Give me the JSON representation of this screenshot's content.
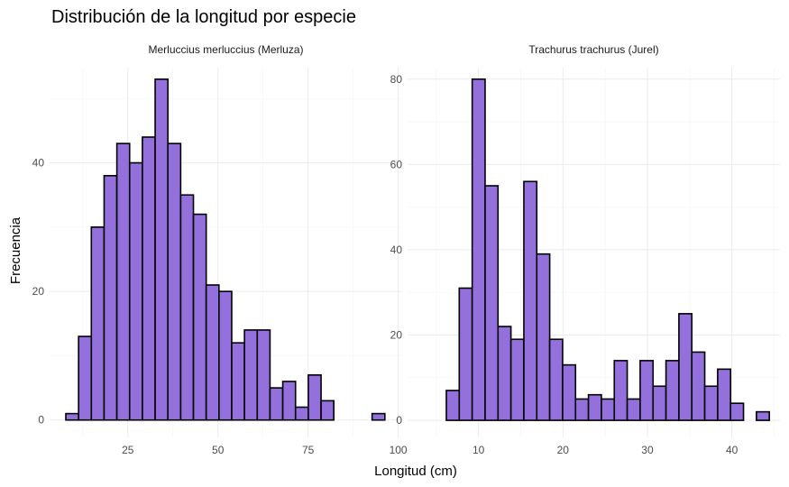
{
  "chart_data": {
    "type": "bar",
    "title": "Distribución de la longitud por especie",
    "xlabel": "Longitud (cm)",
    "ylabel": "Frecuencia",
    "grid": true,
    "colors": {
      "fill": "#9370DB",
      "outline": "#000000"
    },
    "facets": [
      {
        "name": "Merluccius merluccius (Merluza)",
        "bin_start": 7.8,
        "bin_width": 3.54,
        "values": [
          1,
          13,
          30,
          38,
          43,
          40,
          44,
          53,
          43,
          35,
          32,
          21,
          20,
          12,
          14,
          14,
          5,
          6,
          2,
          7,
          3,
          0,
          0,
          0,
          1
        ],
        "xlim": [
          3.3,
          101.1
        ],
        "ylim": [
          -2.7,
          54.8
        ],
        "xticks": [
          25,
          50,
          75,
          100
        ],
        "xtick_labels": [
          "25",
          "50",
          "75",
          "100"
        ],
        "yticks": [
          0,
          20,
          40
        ],
        "ytick_labels": [
          "0",
          "20",
          "40"
        ]
      },
      {
        "name": "Trachurus trachurus (Jurel)",
        "bin_start": 6.19,
        "bin_width": 1.53,
        "values": [
          7,
          31,
          80,
          55,
          22,
          19,
          56,
          39,
          19,
          13,
          5,
          6,
          5,
          14,
          5,
          14,
          8,
          14,
          25,
          16,
          8,
          12,
          4,
          0,
          2
        ],
        "xlim": [
          1.6,
          45.7
        ],
        "ylim": [
          -4,
          82.7
        ],
        "xticks": [
          10,
          20,
          30,
          40
        ],
        "xtick_labels": [
          "10",
          "20",
          "30",
          "40"
        ],
        "yticks": [
          0,
          20,
          40,
          60,
          80
        ],
        "ytick_labels": [
          "0",
          "20",
          "40",
          "60",
          "80"
        ]
      }
    ]
  }
}
